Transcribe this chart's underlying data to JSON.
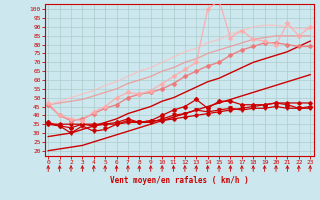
{
  "xlabel": "Vent moyen/en rafales ( km/h )",
  "bg_color": "#cce8ee",
  "grid_color": "#aacccc",
  "x_ticks": [
    0,
    1,
    2,
    3,
    4,
    5,
    6,
    7,
    8,
    9,
    10,
    11,
    12,
    13,
    14,
    15,
    16,
    17,
    18,
    19,
    20,
    21,
    22,
    23
  ],
  "y_ticks": [
    20,
    25,
    30,
    35,
    40,
    45,
    50,
    55,
    60,
    65,
    70,
    75,
    80,
    85,
    90,
    95,
    100
  ],
  "ylim": [
    17,
    103
  ],
  "xlim": [
    -0.3,
    23.3
  ],
  "lines": [
    {
      "x": [
        0,
        1,
        2,
        3,
        4,
        5,
        6,
        7,
        8,
        9,
        10,
        11,
        12,
        13,
        14,
        15,
        16,
        17,
        18,
        19,
        20,
        21,
        22,
        23
      ],
      "y": [
        35,
        35,
        35,
        35,
        35,
        35,
        35,
        36,
        36,
        37,
        37,
        38,
        39,
        40,
        41,
        42,
        43,
        44,
        45,
        46,
        47,
        47,
        47,
        47
      ],
      "color": "#cc0000",
      "marker": "D",
      "markersize": 1.8,
      "linewidth": 0.9,
      "alpha": 1.0
    },
    {
      "x": [
        0,
        1,
        2,
        3,
        4,
        5,
        6,
        7,
        8,
        9,
        10,
        11,
        12,
        13,
        14,
        15,
        16,
        17,
        18,
        19,
        20,
        21,
        22,
        23
      ],
      "y": [
        35,
        34,
        30,
        34,
        31,
        32,
        35,
        37,
        36,
        36,
        38,
        40,
        41,
        43,
        42,
        43,
        44,
        43,
        44,
        44,
        45,
        44,
        44,
        44
      ],
      "color": "#cc0000",
      "marker": "v",
      "markersize": 2.5,
      "linewidth": 0.9,
      "alpha": 1.0
    },
    {
      "x": [
        0,
        1,
        2,
        3,
        4,
        5,
        6,
        7,
        8,
        9,
        10,
        11,
        12,
        13,
        14,
        15,
        16,
        17,
        18,
        19,
        20,
        21,
        22,
        23
      ],
      "y": [
        36,
        34,
        33,
        35,
        34,
        35,
        36,
        38,
        36,
        37,
        40,
        43,
        45,
        49,
        44,
        48,
        48,
        46,
        46,
        46,
        47,
        46,
        44,
        45
      ],
      "color": "#cc0000",
      "marker": "P",
      "markersize": 2.5,
      "linewidth": 0.9,
      "alpha": 1.0
    },
    {
      "x": [
        0,
        1,
        2,
        3,
        4,
        5,
        6,
        7,
        8,
        9,
        10,
        11,
        12,
        13,
        14,
        15,
        16,
        17,
        18,
        19,
        20,
        21,
        22,
        23
      ],
      "y": [
        20,
        21,
        22,
        23,
        25,
        27,
        29,
        31,
        33,
        35,
        37,
        39,
        41,
        43,
        45,
        47,
        49,
        51,
        53,
        55,
        57,
        59,
        61,
        63
      ],
      "color": "#cc0000",
      "marker": null,
      "markersize": 0,
      "linewidth": 1.0,
      "alpha": 1.0
    },
    {
      "x": [
        0,
        1,
        2,
        3,
        4,
        5,
        6,
        7,
        8,
        9,
        10,
        11,
        12,
        13,
        14,
        15,
        16,
        17,
        18,
        19,
        20,
        21,
        22,
        23
      ],
      "y": [
        28,
        29,
        30,
        32,
        34,
        36,
        38,
        41,
        43,
        45,
        48,
        50,
        53,
        56,
        59,
        61,
        64,
        67,
        70,
        72,
        74,
        76,
        79,
        82
      ],
      "color": "#cc0000",
      "marker": null,
      "markersize": 0,
      "linewidth": 1.0,
      "alpha": 1.0
    },
    {
      "x": [
        0,
        1,
        2,
        3,
        4,
        5,
        6,
        7,
        8,
        9,
        10,
        11,
        12,
        13,
        14,
        15,
        16,
        17,
        18,
        19,
        20,
        21,
        22,
        23
      ],
      "y": [
        46,
        40,
        37,
        38,
        41,
        44,
        46,
        50,
        52,
        53,
        55,
        58,
        62,
        65,
        68,
        70,
        74,
        77,
        79,
        81,
        81,
        80,
        79,
        79
      ],
      "color": "#ee7777",
      "marker": "D",
      "markersize": 2.0,
      "linewidth": 1.0,
      "alpha": 0.9
    },
    {
      "x": [
        0,
        1,
        2,
        3,
        4,
        5,
        6,
        7,
        8,
        9,
        10,
        11,
        12,
        13,
        14,
        15,
        16,
        17,
        18,
        19,
        20,
        21,
        22,
        23
      ],
      "y": [
        47,
        40,
        38,
        37,
        42,
        45,
        50,
        53,
        52,
        54,
        58,
        62,
        66,
        70,
        100,
        105,
        84,
        88,
        83,
        82,
        80,
        92,
        85,
        90
      ],
      "color": "#ffaaaa",
      "marker": "D",
      "markersize": 2.0,
      "linewidth": 1.0,
      "alpha": 0.85
    },
    {
      "x": [
        0,
        1,
        2,
        3,
        4,
        5,
        6,
        7,
        8,
        9,
        10,
        11,
        12,
        13,
        14,
        15,
        16,
        17,
        18,
        19,
        20,
        21,
        22,
        23
      ],
      "y": [
        46,
        47,
        48,
        49,
        51,
        53,
        55,
        58,
        60,
        62,
        65,
        67,
        70,
        72,
        75,
        77,
        79,
        81,
        83,
        84,
        85,
        85,
        85,
        85
      ],
      "color": "#ee9999",
      "marker": null,
      "markersize": 0,
      "linewidth": 1.0,
      "alpha": 0.85
    },
    {
      "x": [
        0,
        1,
        2,
        3,
        4,
        5,
        6,
        7,
        8,
        9,
        10,
        11,
        12,
        13,
        14,
        15,
        16,
        17,
        18,
        19,
        20,
        21,
        22,
        23
      ],
      "y": [
        46,
        48,
        50,
        52,
        54,
        57,
        59,
        62,
        65,
        67,
        70,
        73,
        76,
        78,
        81,
        83,
        86,
        88,
        90,
        91,
        91,
        90,
        89,
        89
      ],
      "color": "#ffbbbb",
      "marker": null,
      "markersize": 0,
      "linewidth": 0.9,
      "alpha": 0.8
    }
  ],
  "arrow_color": "#cc0000",
  "tick_color": "#cc0000",
  "label_color": "#cc0000",
  "spine_color": "#cc0000"
}
